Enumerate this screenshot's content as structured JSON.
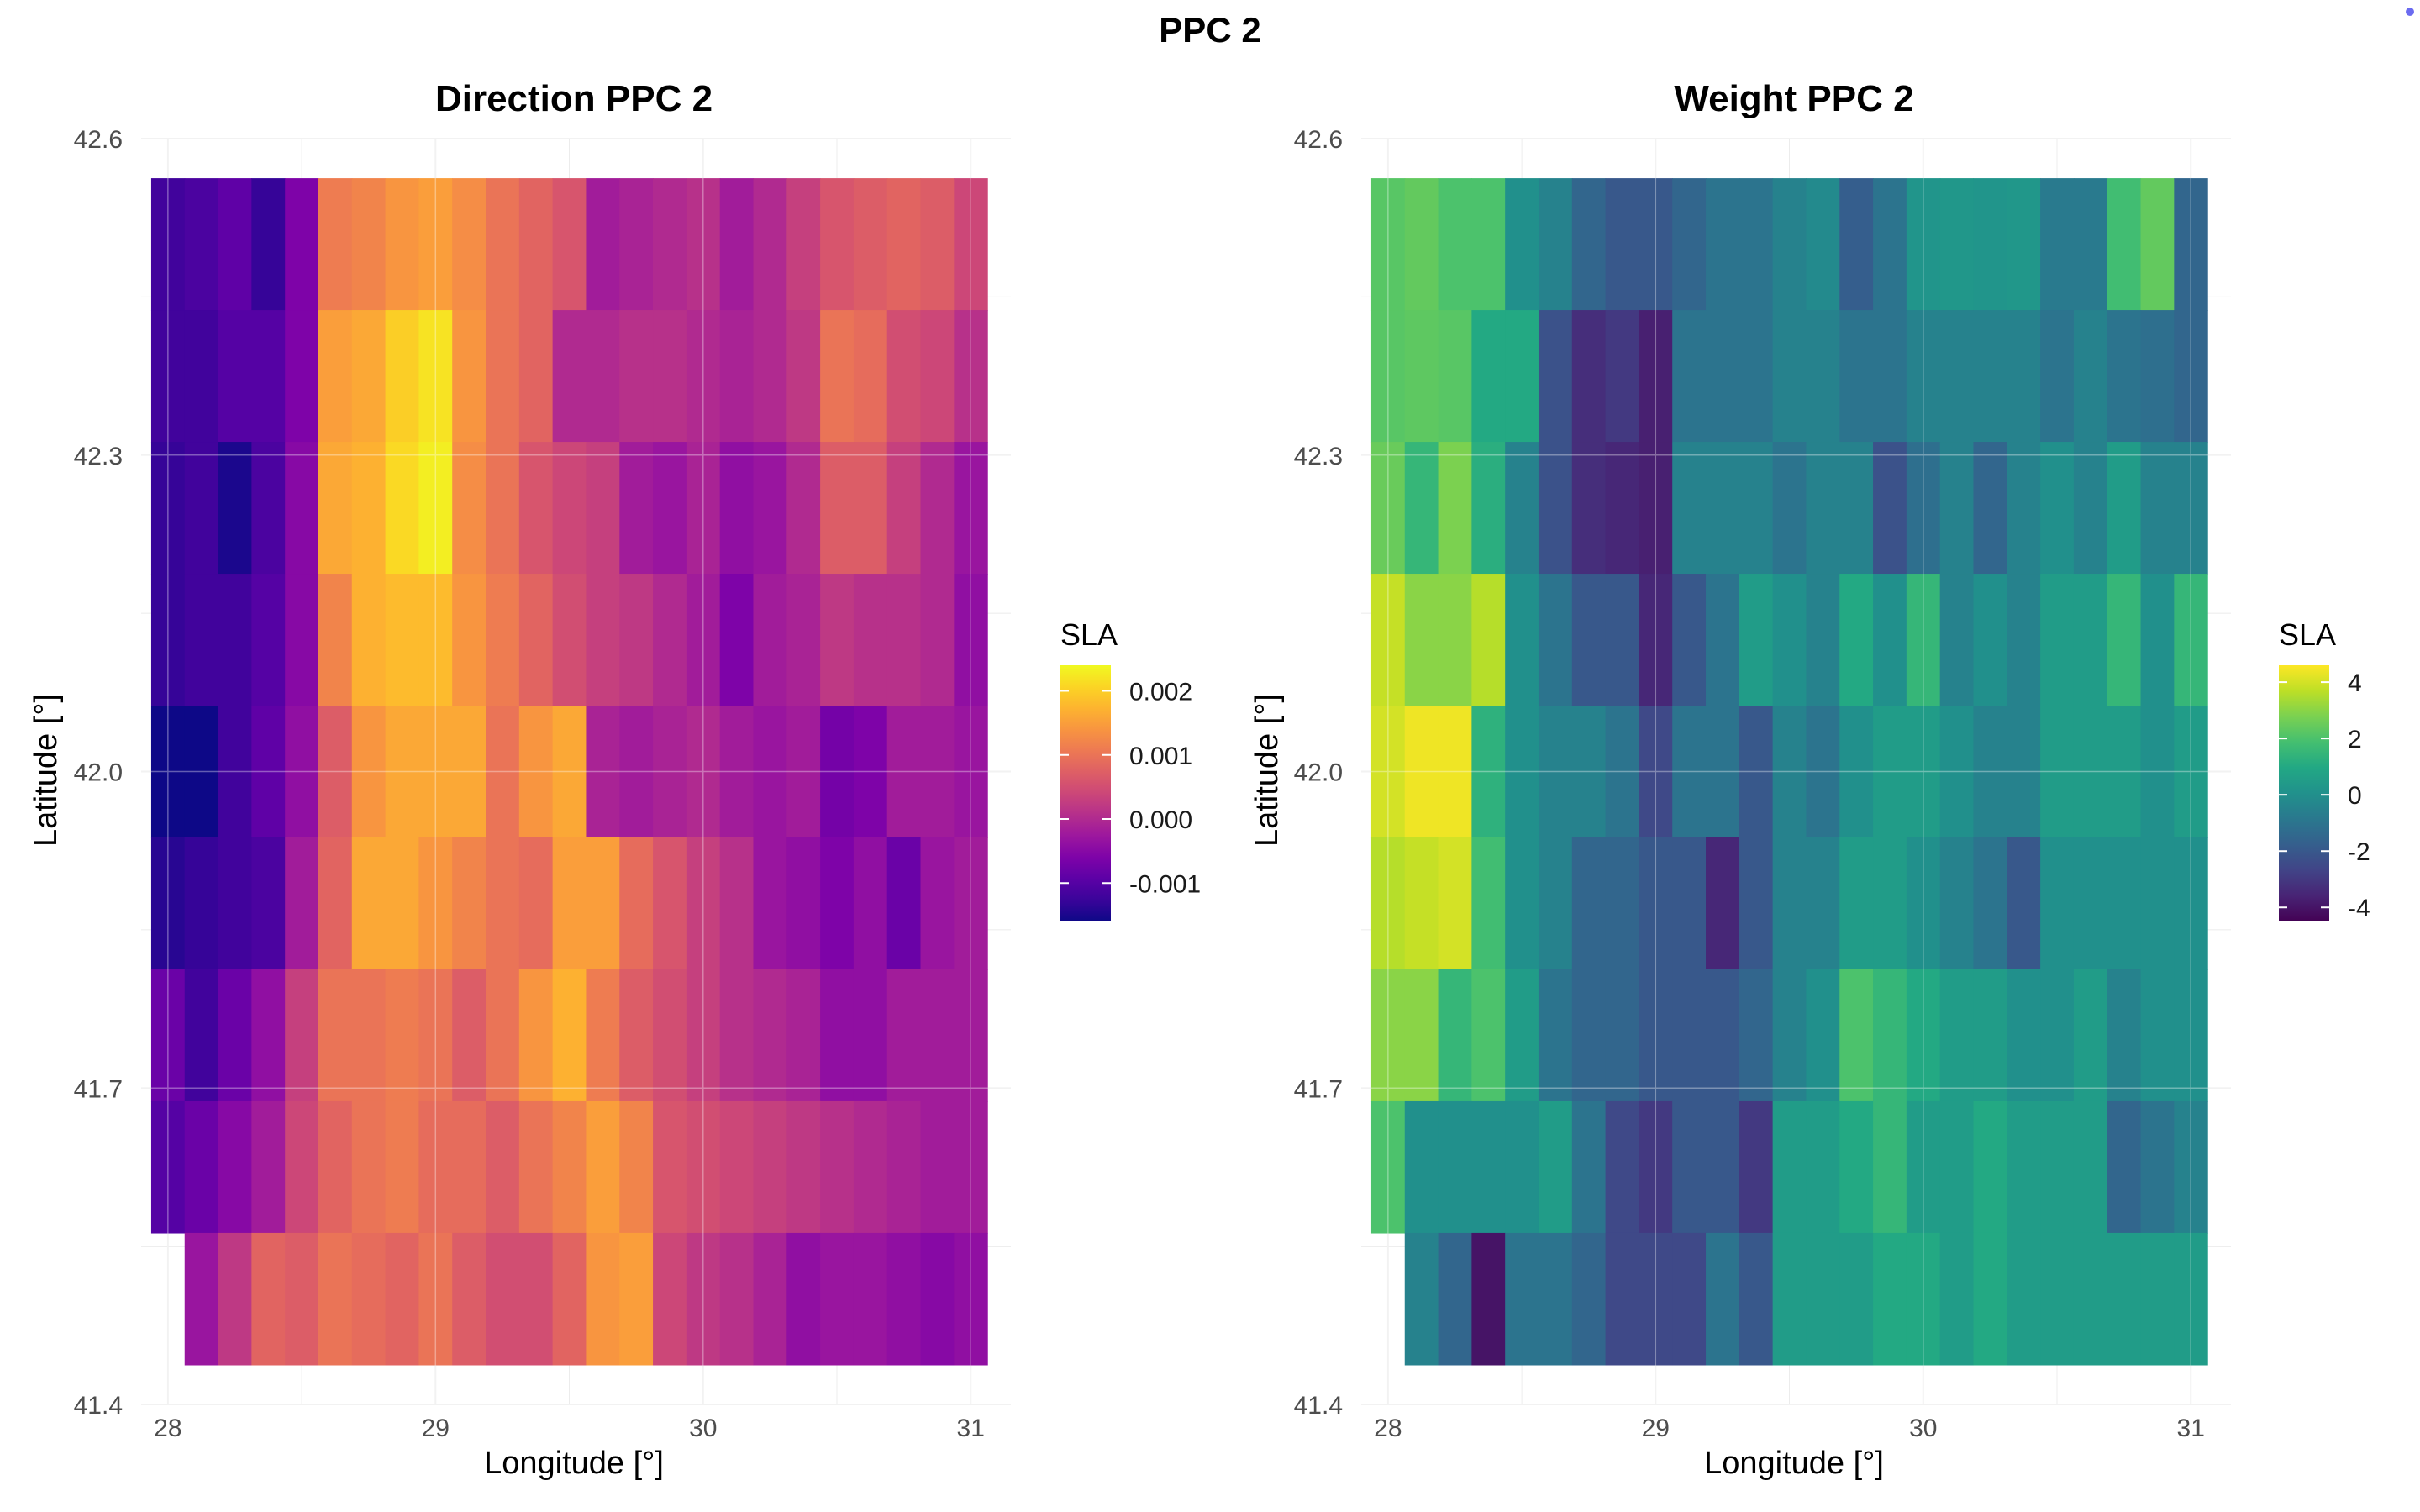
{
  "figure": {
    "title": "PPC 2",
    "accent_dot_color": "#6b6bf0"
  },
  "chart_data": [
    {
      "type": "heatmap",
      "title": "Direction PPC 2",
      "xlabel": "Longitude [°]",
      "ylabel": "Latitude [°]",
      "xlim": [
        27.9,
        31.15
      ],
      "ylim": [
        41.4,
        42.6
      ],
      "x_ticks": [
        "28",
        "29",
        "30",
        "31"
      ],
      "y_ticks": [
        "42.6",
        "42.3",
        "42.0",
        "41.7",
        "41.4"
      ],
      "grid": true,
      "colormap": "plasma",
      "colorbar": {
        "title": "SLA",
        "min": -0.0016,
        "max": 0.0024,
        "ticks": [
          "0.002",
          "0.001",
          "0.000",
          "-0.001"
        ],
        "tick_values": [
          0.002,
          0.001,
          0.0,
          -0.001
        ]
      },
      "legend_position": "right",
      "x": [
        28.0,
        28.125,
        28.25,
        28.375,
        28.5,
        28.625,
        28.75,
        28.875,
        29.0,
        29.125,
        29.25,
        29.375,
        29.5,
        29.625,
        29.75,
        29.875,
        30.0,
        30.125,
        30.25,
        30.375,
        30.5,
        30.625,
        30.75,
        30.875,
        31.0
      ],
      "y": [
        42.5,
        42.375,
        42.25,
        42.125,
        42.0,
        41.875,
        41.75,
        41.625,
        41.5
      ],
      "z": [
        [
          -0.0012,
          -0.0011,
          -0.0009,
          -0.0013,
          -0.0006,
          0.0011,
          0.0012,
          0.0014,
          0.0015,
          0.0013,
          0.001,
          0.0008,
          0.0006,
          -0.0002,
          -0.0001,
          0.0,
          0.0001,
          -0.0002,
          0.0,
          0.0003,
          0.0006,
          0.0007,
          0.0008,
          0.0007,
          0.0004
        ],
        [
          -0.0012,
          -0.0012,
          -0.001,
          -0.001,
          -0.0006,
          0.0015,
          0.0016,
          0.002,
          0.0022,
          0.0014,
          0.001,
          0.0008,
          0.0,
          0.0,
          0.0001,
          0.0001,
          0.0,
          -0.0001,
          0.0,
          0.0002,
          0.001,
          0.0009,
          0.0005,
          0.0004,
          0.0001
        ],
        [
          -0.0013,
          -0.0012,
          -0.0015,
          -0.0011,
          -0.0005,
          0.0016,
          0.0017,
          0.0021,
          0.0023,
          0.0013,
          0.001,
          0.0006,
          0.0004,
          0.0003,
          -0.0002,
          -0.0003,
          -0.0001,
          -0.0004,
          -0.0003,
          0.0,
          0.0007,
          0.0007,
          0.0003,
          0.0,
          -0.0003
        ],
        [
          -0.0013,
          -0.0012,
          -0.0012,
          -0.001,
          -0.0005,
          0.0012,
          0.0017,
          0.0018,
          0.0018,
          0.0014,
          0.0011,
          0.0008,
          0.0005,
          0.0003,
          0.0002,
          0.0,
          -0.0002,
          -0.0006,
          -0.0002,
          -0.0001,
          0.0002,
          0.0001,
          0.0001,
          0.0,
          -0.0004
        ],
        [
          -0.0016,
          -0.0016,
          -0.0012,
          -0.0009,
          -0.0004,
          0.0007,
          0.0014,
          0.0016,
          0.0016,
          0.0016,
          0.001,
          0.0014,
          0.0016,
          -0.0001,
          -0.0002,
          -0.0001,
          0.0,
          -0.0002,
          -0.0003,
          -0.0002,
          -0.0007,
          -0.0006,
          -0.0002,
          -0.0002,
          -0.0003
        ],
        [
          -0.0014,
          -0.0013,
          -0.0012,
          -0.0011,
          -0.0002,
          0.0008,
          0.0016,
          0.0016,
          0.0014,
          0.0012,
          0.001,
          0.0009,
          0.0015,
          0.0015,
          0.0009,
          0.0006,
          0.0003,
          0.0001,
          -0.0003,
          -0.0004,
          -0.0006,
          -0.0004,
          -0.0008,
          -0.0003,
          -0.0002
        ],
        [
          -0.0008,
          -0.0012,
          -0.0008,
          -0.0004,
          0.0003,
          0.001,
          0.001,
          0.0011,
          0.001,
          0.0007,
          0.001,
          0.0014,
          0.0017,
          0.0011,
          0.0007,
          0.0005,
          0.0003,
          0.0001,
          0.0,
          -0.0001,
          -0.0004,
          -0.0004,
          -0.0002,
          -0.0002,
          -0.0002
        ],
        [
          -0.001,
          -0.0008,
          -0.0005,
          -0.0002,
          0.0004,
          0.0008,
          0.001,
          0.0011,
          0.0009,
          0.0009,
          0.0007,
          0.001,
          0.0012,
          0.0015,
          0.0012,
          0.0006,
          0.0005,
          0.0004,
          0.0003,
          0.0002,
          0.0001,
          0.0,
          -0.0001,
          -0.0002,
          -0.0002
        ],
        [
          null,
          -0.0003,
          0.0002,
          0.0008,
          0.0007,
          0.001,
          0.0009,
          0.0008,
          0.001,
          0.0007,
          0.0005,
          0.0005,
          0.0008,
          0.0014,
          0.0015,
          0.0004,
          0.0002,
          0.0001,
          -0.0001,
          -0.0004,
          -0.0003,
          -0.0003,
          -0.0004,
          -0.0005,
          -0.0004
        ]
      ]
    },
    {
      "type": "heatmap",
      "title": "Weight PPC 2",
      "xlabel": "Longitude [°]",
      "ylabel": "Latitude [°]",
      "xlim": [
        27.9,
        31.15
      ],
      "ylim": [
        41.4,
        42.6
      ],
      "x_ticks": [
        "28",
        "29",
        "30",
        "31"
      ],
      "y_ticks": [
        "42.6",
        "42.3",
        "42.0",
        "41.7",
        "41.4"
      ],
      "grid": true,
      "colormap": "viridis",
      "colorbar": {
        "title": "SLA",
        "min": -4.5,
        "max": 4.6,
        "ticks": [
          "4",
          "2",
          "0",
          "-2",
          "-4"
        ],
        "tick_values": [
          4,
          2,
          0,
          -2,
          -4
        ]
      },
      "legend_position": "right",
      "x": [
        28.0,
        28.125,
        28.25,
        28.375,
        28.5,
        28.625,
        28.75,
        28.875,
        29.0,
        29.125,
        29.25,
        29.375,
        29.5,
        29.625,
        29.75,
        29.875,
        30.0,
        30.125,
        30.25,
        30.375,
        30.5,
        30.625,
        30.75,
        30.875,
        31.0
      ],
      "y": [
        42.5,
        42.375,
        42.25,
        42.125,
        42.0,
        41.875,
        41.75,
        41.625,
        41.5
      ],
      "z": [
        [
          2.2,
          2.4,
          2.0,
          2.0,
          0.0,
          -0.5,
          -1.5,
          -2.0,
          -2.0,
          -1.5,
          -1.0,
          -1.0,
          -0.5,
          -0.2,
          -1.8,
          -1.0,
          0.2,
          0.3,
          0.2,
          0.3,
          -0.8,
          -0.8,
          1.8,
          2.4,
          -1.5
        ],
        [
          2.2,
          2.3,
          2.2,
          1.0,
          1.0,
          -2.2,
          -3.3,
          -3.0,
          -3.7,
          -1.0,
          -1.0,
          -1.0,
          -0.5,
          -0.5,
          -1.0,
          -1.0,
          -0.5,
          -0.5,
          -0.5,
          -0.5,
          -1.0,
          -0.5,
          -1.0,
          -1.2,
          -1.5
        ],
        [
          2.5,
          1.5,
          2.8,
          1.2,
          -0.5,
          -2.2,
          -3.3,
          -3.5,
          -3.7,
          -0.5,
          -0.5,
          -0.5,
          -1.0,
          -0.5,
          -0.5,
          -2.2,
          -1.2,
          -0.5,
          -1.5,
          -0.5,
          0.0,
          -0.5,
          0.5,
          -0.5,
          -0.5
        ],
        [
          3.8,
          3.0,
          3.0,
          3.6,
          0.0,
          -1.0,
          -2.0,
          -2.0,
          -3.5,
          -2.0,
          -1.0,
          0.5,
          0.0,
          -0.5,
          1.0,
          0.0,
          1.5,
          -0.5,
          0.0,
          -0.5,
          0.5,
          0.5,
          1.5,
          0.0,
          1.5
        ],
        [
          4.0,
          4.4,
          4.4,
          1.3,
          0.0,
          -0.5,
          -0.5,
          -1.0,
          -2.5,
          -1.0,
          -1.0,
          -2.0,
          -0.5,
          -1.0,
          0.0,
          0.5,
          0.5,
          0.0,
          -0.5,
          -0.5,
          0.5,
          0.5,
          0.5,
          0.0,
          0.5
        ],
        [
          3.6,
          3.8,
          4.0,
          1.8,
          0.0,
          -0.5,
          -1.5,
          -1.5,
          -2.0,
          -2.0,
          -3.5,
          -2.0,
          -0.5,
          -0.5,
          0.5,
          0.5,
          0.0,
          -0.5,
          -1.0,
          -2.0,
          0.0,
          0.0,
          0.0,
          0.0,
          0.0
        ],
        [
          3.0,
          3.0,
          1.5,
          2.0,
          0.5,
          -1.0,
          -1.5,
          -1.5,
          -2.0,
          -2.0,
          -2.0,
          -1.5,
          -0.5,
          0.0,
          2.0,
          1.5,
          1.0,
          0.5,
          0.5,
          0.0,
          0.0,
          0.5,
          -0.5,
          0.0,
          0.0
        ],
        [
          2.0,
          0.0,
          0.0,
          0.0,
          0.0,
          0.5,
          -1.0,
          -2.5,
          -3.0,
          -2.0,
          -2.0,
          -3.0,
          0.5,
          0.5,
          1.0,
          1.5,
          0.5,
          0.5,
          1.0,
          0.5,
          0.5,
          0.5,
          -1.5,
          -1.0,
          -0.5
        ],
        [
          null,
          -0.5,
          -1.5,
          -4.0,
          -1.0,
          -1.0,
          -1.5,
          -2.5,
          -2.5,
          -2.5,
          -1.0,
          -2.0,
          0.5,
          0.5,
          0.5,
          1.0,
          1.0,
          0.5,
          1.0,
          0.5,
          0.5,
          0.5,
          0.5,
          0.5,
          0.5
        ]
      ]
    }
  ]
}
